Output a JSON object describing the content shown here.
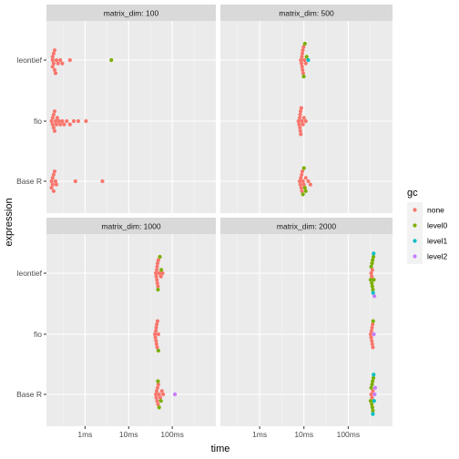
{
  "chart_data": {
    "type": "scatter",
    "subtype": "beeswarm, faceted",
    "xlabel": "time",
    "ylabel": "expression",
    "x_scale": "log10",
    "x_ticks": [
      "1ms",
      "10ms",
      "100ms"
    ],
    "x_tick_values_ms": [
      1,
      10,
      100
    ],
    "xlim_ms": [
      0.13,
      1000
    ],
    "categories": [
      "leontief",
      "fio",
      "Base R"
    ],
    "grid": true,
    "legend": {
      "title": "gc",
      "position": "right",
      "entries": [
        {
          "label": "none",
          "color": "#F8766D"
        },
        {
          "label": "level0",
          "color": "#7CAE00"
        },
        {
          "label": "level1",
          "color": "#00BFC4"
        },
        {
          "label": "level2",
          "color": "#C77CFF"
        }
      ]
    },
    "facets": [
      {
        "strip": "matrix_dim: 100",
        "series": [
          {
            "expression": "leontief",
            "gc": "none",
            "times_ms": [
              0.18,
              0.18,
              0.18,
              0.19,
              0.19,
              0.2,
              0.2,
              0.21,
              0.22,
              0.24,
              0.27,
              0.3,
              0.45
            ]
          },
          {
            "expression": "leontief",
            "gc": "level0",
            "times_ms": [
              4.0
            ]
          },
          {
            "expression": "fio",
            "gc": "none",
            "times_ms": [
              0.17,
              0.18,
              0.18,
              0.19,
              0.19,
              0.2,
              0.2,
              0.21,
              0.22,
              0.23,
              0.25,
              0.27,
              0.3,
              0.33,
              0.38,
              0.45,
              0.55,
              0.7,
              1.05
            ]
          },
          {
            "expression": "Base R",
            "gc": "none",
            "times_ms": [
              0.17,
              0.17,
              0.18,
              0.18,
              0.19,
              0.19,
              0.2,
              0.21,
              0.22,
              0.6,
              2.5
            ]
          }
        ]
      },
      {
        "strip": "matrix_dim: 500",
        "series": [
          {
            "expression": "leontief",
            "gc": "none",
            "times_ms": [
              8.5,
              8.8,
              9.0,
              9.1,
              9.2,
              9.3,
              9.4,
              9.6,
              9.8,
              10.2,
              11.0
            ]
          },
          {
            "expression": "leontief",
            "gc": "level0",
            "times_ms": [
              9.9,
              10.5,
              11.5
            ]
          },
          {
            "expression": "leontief",
            "gc": "level1",
            "times_ms": [
              12.5
            ]
          },
          {
            "expression": "fio",
            "gc": "none",
            "times_ms": [
              7.5,
              7.8,
              8.0,
              8.1,
              8.2,
              8.3,
              8.4,
              8.5,
              8.7,
              9.0,
              9.5,
              10.0,
              11.0
            ]
          },
          {
            "expression": "Base R",
            "gc": "none",
            "times_ms": [
              8.0,
              8.3,
              8.5,
              8.7,
              8.9,
              9.0,
              9.2,
              9.5,
              10.0,
              11.0,
              12.5,
              14.0
            ]
          },
          {
            "expression": "Base R",
            "gc": "level0",
            "times_ms": [
              9.5,
              10.0,
              10.5,
              11.0
            ]
          }
        ]
      },
      {
        "strip": "matrix_dim: 1000",
        "series": [
          {
            "expression": "leontief",
            "gc": "none",
            "times_ms": [
              42,
              43,
              44,
              44.5,
              45,
              45.5,
              46,
              47,
              48,
              50,
              55,
              60
            ]
          },
          {
            "expression": "leontief",
            "gc": "level0",
            "times_ms": [
              47,
              52,
              56
            ]
          },
          {
            "expression": "fio",
            "gc": "none",
            "times_ms": [
              40,
              41,
              42,
              42.5,
              43,
              43.5,
              44,
              45,
              46,
              48
            ]
          },
          {
            "expression": "fio",
            "gc": "level0",
            "times_ms": [
              48
            ]
          },
          {
            "expression": "Base R",
            "gc": "none",
            "times_ms": [
              42,
              43,
              44,
              45,
              46,
              47,
              48,
              50,
              53,
              58,
              62
            ]
          },
          {
            "expression": "Base R",
            "gc": "level0",
            "times_ms": [
              47,
              50,
              55
            ]
          },
          {
            "expression": "Base R",
            "gc": "level2",
            "times_ms": [
              115
            ]
          }
        ]
      },
      {
        "strip": "matrix_dim: 2000",
        "series": [
          {
            "expression": "leontief",
            "gc": "none",
            "times_ms": [
              330,
              340,
              350
            ]
          },
          {
            "expression": "leontief",
            "gc": "level0",
            "times_ms": [
              320,
              330,
              340,
              345,
              350,
              355,
              360,
              370,
              380
            ]
          },
          {
            "expression": "leontief",
            "gc": "level1",
            "times_ms": [
              365,
              375
            ]
          },
          {
            "expression": "leontief",
            "gc": "level2",
            "times_ms": [
              390
            ]
          },
          {
            "expression": "fio",
            "gc": "none",
            "times_ms": [
              320,
              330,
              335,
              340,
              345,
              350,
              355,
              360
            ]
          },
          {
            "expression": "fio",
            "gc": "level0",
            "times_ms": [
              365
            ]
          },
          {
            "expression": "fio",
            "gc": "level2",
            "times_ms": [
              380
            ]
          },
          {
            "expression": "Base R",
            "gc": "none",
            "times_ms": [
              330,
              345,
              360
            ]
          },
          {
            "expression": "Base R",
            "gc": "level0",
            "times_ms": [
              320,
              330,
              340,
              345,
              350,
              355,
              360,
              370
            ]
          },
          {
            "expression": "Base R",
            "gc": "level1",
            "times_ms": [
              360,
              375,
              385
            ]
          },
          {
            "expression": "Base R",
            "gc": "level2",
            "times_ms": [
              395,
              405
            ]
          }
        ]
      }
    ]
  }
}
